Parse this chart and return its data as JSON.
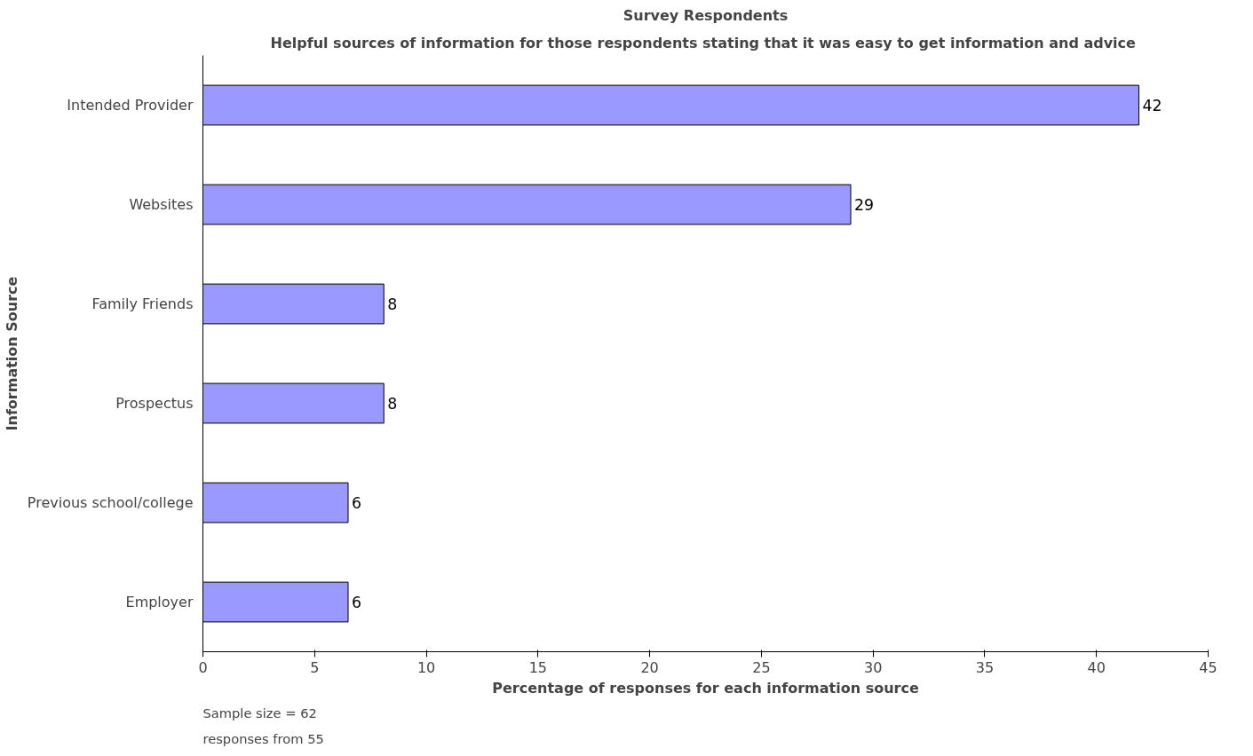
{
  "chart_data": {
    "type": "bar",
    "orientation": "horizontal",
    "title": "Survey Respondents",
    "subtitle": "Helpful sources of information for those respondents stating that it was easy to get information and  advice",
    "xlabel": "Percentage of responses for each information source",
    "ylabel": "Information Source",
    "categories": [
      "Intended Provider",
      "Websites",
      "Family Friends",
      "Prospectus",
      "Previous school/college",
      "Employer"
    ],
    "values": [
      41.9,
      29.0,
      8.1,
      8.1,
      6.5,
      6.5
    ],
    "value_labels": [
      "42",
      "29",
      "8",
      "8",
      "6",
      "6"
    ],
    "color": "#9999ff",
    "xlim": [
      0,
      45
    ],
    "xticks": [
      0,
      5,
      10,
      15,
      20,
      25,
      30,
      35,
      40,
      45
    ],
    "grid": false,
    "annotations": [
      "Sample size = 62",
      "responses from 55"
    ]
  }
}
